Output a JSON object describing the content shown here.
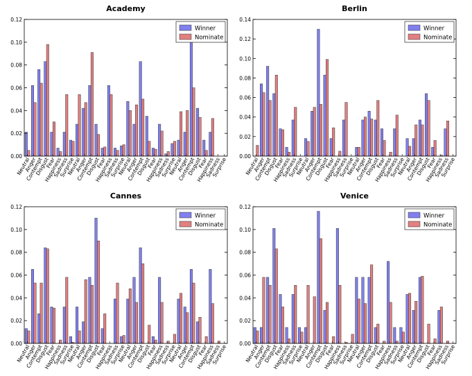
{
  "chart_data": [
    {
      "type": "bar",
      "title": "Academy",
      "xlabel": "",
      "ylabel": "",
      "ylim": [
        0,
        0.12
      ],
      "yticks": [
        "0.00",
        "0.02",
        "0.04",
        "0.06",
        "0.08",
        "0.10",
        "0.12"
      ],
      "grid": false,
      "legend": "top-right",
      "categories": [
        "Neutral",
        "Anger",
        "Contempt",
        "Disgust",
        "Fear",
        "Happiness",
        "Sadness",
        "Surprise",
        "Neutral",
        "Anger",
        "Contempt",
        "Disgust",
        "Fear",
        "Happiness",
        "Sadness",
        "Surprise",
        "Neutral",
        "Anger",
        "Contempt",
        "Disgust",
        "Fear",
        "Happiness",
        "Sadness",
        "Surprise",
        "Neutral",
        "Anger",
        "Contempt",
        "Disgust",
        "Fear",
        "Happiness",
        "Sadness",
        "Surprise"
      ],
      "series": [
        {
          "name": "Winner",
          "color": "#8080ee",
          "values": [
            0.021,
            0.062,
            0.076,
            0.083,
            0.021,
            0.007,
            0.021,
            0.014,
            0.028,
            0.042,
            0.062,
            0.028,
            0.007,
            0.062,
            0.007,
            0.009,
            0.048,
            0.028,
            0.083,
            0.035,
            0.007,
            0.028,
            0.002,
            0.011,
            0.014,
            0.021,
            0.118,
            0.042,
            0.014,
            0.021,
            0.0,
            0.0
          ]
        },
        {
          "name": "Nominate",
          "color": "#e08080",
          "values": [
            0.005,
            0.047,
            0.064,
            0.098,
            0.03,
            0.004,
            0.054,
            0.013,
            0.054,
            0.047,
            0.091,
            0.019,
            0.008,
            0.054,
            0.005,
            0.01,
            0.04,
            0.045,
            0.05,
            0.013,
            0.006,
            0.022,
            0.004,
            0.013,
            0.039,
            0.04,
            0.06,
            0.034,
            0.005,
            0.033,
            0.0,
            0.0
          ]
        }
      ]
    },
    {
      "type": "bar",
      "title": "Berlin",
      "xlabel": "",
      "ylabel": "",
      "ylim": [
        0,
        0.14
      ],
      "yticks": [
        "0.00",
        "0.02",
        "0.04",
        "0.06",
        "0.08",
        "0.10",
        "0.12",
        "0.14"
      ],
      "grid": false,
      "legend": "top-right",
      "categories": [
        "Neutral",
        "Anger",
        "Contempt",
        "Disgust",
        "Fear",
        "Happiness",
        "Sadness",
        "Surprise",
        "Neutral",
        "Anger",
        "Contempt",
        "Disgust",
        "Fear",
        "Happiness",
        "Sadness",
        "Surprise",
        "Neutral",
        "Anger",
        "Contempt",
        "Disgust",
        "Fear",
        "Happiness",
        "Sadness",
        "Surprise",
        "Neutral",
        "Anger",
        "Contempt",
        "Disgust",
        "Fear",
        "Happiness",
        "Sadness",
        "Surprise"
      ],
      "series": [
        {
          "name": "Winner",
          "color": "#8080ee",
          "values": [
            0.0,
            0.074,
            0.092,
            0.064,
            0.028,
            0.009,
            0.037,
            0.0,
            0.018,
            0.046,
            0.13,
            0.083,
            0.018,
            0.0,
            0.037,
            0.0,
            0.009,
            0.037,
            0.046,
            0.037,
            0.028,
            0.0,
            0.028,
            0.0,
            0.018,
            0.018,
            0.037,
            0.064,
            0.009,
            0.0,
            0.028,
            0.0
          ]
        },
        {
          "name": "Nominate",
          "color": "#e08080",
          "values": [
            0.011,
            0.065,
            0.057,
            0.083,
            0.027,
            0.004,
            0.05,
            0.0,
            0.015,
            0.05,
            0.053,
            0.099,
            0.029,
            0.005,
            0.055,
            0.0,
            0.009,
            0.04,
            0.038,
            0.057,
            0.016,
            0.004,
            0.042,
            0.0,
            0.01,
            0.032,
            0.032,
            0.057,
            0.016,
            0.001,
            0.036,
            0.0
          ]
        }
      ]
    },
    {
      "type": "bar",
      "title": "Cannes",
      "xlabel": "",
      "ylabel": "",
      "ylim": [
        0,
        0.12
      ],
      "yticks": [
        "0.00",
        "0.02",
        "0.04",
        "0.06",
        "0.08",
        "0.10",
        "0.12"
      ],
      "grid": false,
      "legend": "top-right",
      "categories": [
        "Neutral",
        "Anger",
        "Contempt",
        "Disgust",
        "Fear",
        "Happiness",
        "Sadness",
        "Surprise",
        "Neutral",
        "Anger",
        "Contempt",
        "Disgust",
        "Fear",
        "Happiness",
        "Sadness",
        "Surprise",
        "Neutral",
        "Anger",
        "Contempt",
        "Disgust",
        "Fear",
        "Happiness",
        "Sadness",
        "Surprise",
        "Neutral",
        "Anger",
        "Contempt",
        "Disgust",
        "Fear",
        "Happiness",
        "Sadness",
        "Surprise"
      ],
      "series": [
        {
          "name": "Winner",
          "color": "#8080ee",
          "values": [
            0.013,
            0.065,
            0.026,
            0.084,
            0.032,
            0.0,
            0.032,
            0.006,
            0.032,
            0.019,
            0.058,
            0.11,
            0.013,
            0.0,
            0.039,
            0.006,
            0.039,
            0.058,
            0.084,
            0.0,
            0.006,
            0.058,
            0.0,
            0.0,
            0.039,
            0.032,
            0.065,
            0.019,
            0.0,
            0.065,
            0.0,
            0.0
          ]
        },
        {
          "name": "Nominate",
          "color": "#e08080",
          "values": [
            0.011,
            0.053,
            0.053,
            0.083,
            0.031,
            0.003,
            0.058,
            0.001,
            0.011,
            0.056,
            0.051,
            0.09,
            0.026,
            0.0,
            0.053,
            0.007,
            0.048,
            0.036,
            0.07,
            0.016,
            0.003,
            0.036,
            0.002,
            0.008,
            0.044,
            0.027,
            0.053,
            0.023,
            0.006,
            0.035,
            0.002,
            0.0
          ]
        }
      ]
    },
    {
      "type": "bar",
      "title": "Venice",
      "xlabel": "",
      "ylabel": "",
      "ylim": [
        0,
        0.12
      ],
      "yticks": [
        "0.00",
        "0.02",
        "0.04",
        "0.06",
        "0.08",
        "0.10",
        "0.12"
      ],
      "grid": false,
      "legend": "top-right",
      "categories": [
        "Neutral",
        "Anger",
        "Contempt",
        "Disgust",
        "Fear",
        "Happiness",
        "Sadness",
        "Surprise",
        "Neutral",
        "Anger",
        "Contempt",
        "Disgust",
        "Fear",
        "Happiness",
        "Sadness",
        "Surprise",
        "Neutral",
        "Anger",
        "Contempt",
        "Disgust",
        "Fear",
        "Happiness",
        "Sadness",
        "Surprise",
        "Neutral",
        "Anger",
        "Contempt",
        "Disgust",
        "Fear",
        "Happiness",
        "Sadness",
        "Surprise"
      ],
      "series": [
        {
          "name": "Winner",
          "color": "#8080ee",
          "values": [
            0.014,
            0.014,
            0.058,
            0.101,
            0.043,
            0.014,
            0.043,
            0.014,
            0.014,
            0.0,
            0.116,
            0.029,
            0.0,
            0.101,
            0.0,
            0.0,
            0.058,
            0.058,
            0.058,
            0.014,
            0.0,
            0.072,
            0.014,
            0.014,
            0.043,
            0.029,
            0.058,
            0.0,
            0.0,
            0.029,
            0.0,
            0.0
          ]
        },
        {
          "name": "Nominate",
          "color": "#e08080",
          "values": [
            0.011,
            0.058,
            0.051,
            0.083,
            0.032,
            0.004,
            0.051,
            0.01,
            0.051,
            0.041,
            0.092,
            0.036,
            0.006,
            0.051,
            0.001,
            0.008,
            0.039,
            0.035,
            0.069,
            0.017,
            0.002,
            0.036,
            0.002,
            0.01,
            0.044,
            0.037,
            0.059,
            0.017,
            0.004,
            0.032,
            0.002,
            0.0
          ]
        }
      ]
    }
  ]
}
